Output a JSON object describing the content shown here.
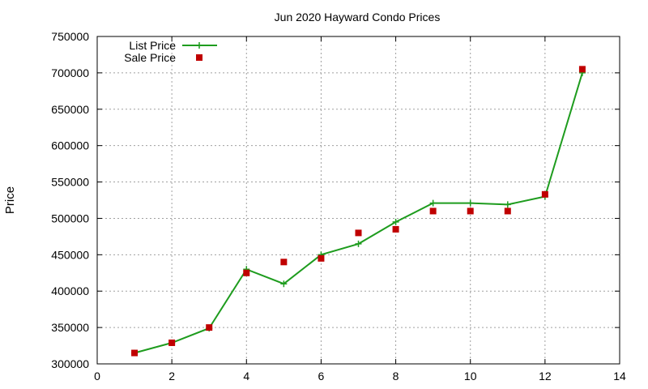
{
  "chart_data": {
    "type": "line",
    "title": "Jun 2020 Hayward Condo Prices",
    "xlabel": "",
    "ylabel": "Price",
    "xlim": [
      0,
      14
    ],
    "ylim": [
      300000,
      750000
    ],
    "xticks": [
      0,
      2,
      4,
      6,
      8,
      10,
      12,
      14
    ],
    "yticks": [
      300000,
      350000,
      400000,
      450000,
      500000,
      550000,
      600000,
      650000,
      700000,
      750000
    ],
    "grid": true,
    "legend_position": "top-left",
    "series": [
      {
        "name": "List Price",
        "style": "line-with-plus-markers",
        "color": "#1e9c1e",
        "x": [
          1,
          2,
          3,
          4,
          5,
          6,
          7,
          8,
          9,
          10,
          11,
          12,
          13
        ],
        "y": [
          315000,
          329000,
          349000,
          430000,
          410000,
          450000,
          465000,
          495000,
          521000,
          521000,
          519000,
          530000,
          700000
        ]
      },
      {
        "name": "Sale Price",
        "style": "square-markers",
        "color": "#c00000",
        "x": [
          1,
          2,
          3,
          4,
          5,
          6,
          7,
          8,
          9,
          10,
          11,
          12,
          13
        ],
        "y": [
          315000,
          329000,
          350000,
          425000,
          440000,
          445000,
          480000,
          485000,
          510000,
          510000,
          510000,
          533000,
          705000
        ]
      }
    ]
  }
}
